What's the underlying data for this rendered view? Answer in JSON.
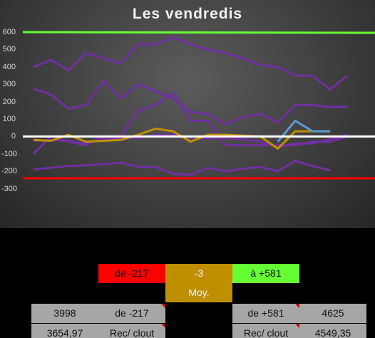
{
  "chart_data": {
    "type": "line",
    "title": "Les vendredis",
    "ylim": [
      -300,
      600
    ],
    "yticks": [
      "600",
      "500",
      "400",
      "300",
      "200",
      "100",
      "0",
      "-100",
      "-200",
      "-300"
    ],
    "x": [
      1,
      2,
      3,
      4,
      5,
      6,
      7,
      8,
      9,
      10,
      11,
      12,
      13,
      14,
      15,
      16,
      17,
      18,
      19,
      20
    ],
    "series": [
      {
        "color": "#7030a0",
        "values": [
          400,
          440,
          380,
          480,
          450,
          420,
          530,
          530,
          570,
          530,
          500,
          480,
          450,
          410,
          400,
          350,
          350,
          270,
          350,
          null
        ]
      },
      {
        "color": "#7030a0",
        "values": [
          275,
          240,
          160,
          180,
          320,
          220,
          300,
          260,
          220,
          140,
          130,
          70,
          110,
          130,
          80,
          180,
          180,
          170,
          170,
          null
        ]
      },
      {
        "color": "#7030a0",
        "values": [
          -100,
          0,
          -30,
          -50,
          0,
          0,
          150,
          180,
          250,
          90,
          90,
          -50,
          -50,
          -50,
          -50,
          -50,
          -30,
          -30,
          0,
          null
        ]
      },
      {
        "color": "#7030a0",
        "values": [
          -190,
          -180,
          -170,
          -165,
          -160,
          -150,
          -175,
          -175,
          -215,
          -220,
          -180,
          -200,
          -185,
          -175,
          -200,
          -140,
          -170,
          -195,
          null,
          null
        ]
      },
      {
        "color": "#7030a0",
        "values": [
          -25,
          -20,
          -25,
          -40,
          -15,
          -10,
          -10,
          10,
          10,
          -20,
          -10,
          -10,
          -15,
          -30,
          -60,
          -40,
          -40,
          -15,
          10,
          null
        ]
      },
      {
        "color": "#c09000",
        "values": [
          -20,
          -25,
          10,
          -30,
          -25,
          -20,
          10,
          45,
          30,
          -30,
          10,
          10,
          5,
          0,
          -70,
          30,
          30,
          30,
          null,
          null
        ]
      },
      {
        "color": "#5b9bd5",
        "values": [
          null,
          null,
          null,
          null,
          null,
          null,
          null,
          null,
          null,
          null,
          null,
          null,
          null,
          null,
          -30,
          90,
          30,
          30,
          null,
          null
        ]
      }
    ],
    "reference_lines": [
      {
        "value": 600,
        "color": "#66ff33"
      },
      {
        "value": 0,
        "color": "#ffffff"
      },
      {
        "value": -240,
        "color": "#ff0000"
      }
    ]
  },
  "summary": {
    "min_label": "de -217",
    "avg_value": "-3",
    "max_label": "à +581",
    "avg_caption": "Moy.",
    "left_count": "3998",
    "left_label": "de -217",
    "right_label": "de +581",
    "right_count": "4625",
    "left_value": "3654,97",
    "left_caption": "Rec/ clout",
    "right_caption": "Rec/ clout",
    "right_value": "4549,35"
  },
  "colors": {
    "red": "#ff0000",
    "gold": "#bf8f00",
    "green": "#66ff33",
    "grey": "#a6a6a6"
  }
}
